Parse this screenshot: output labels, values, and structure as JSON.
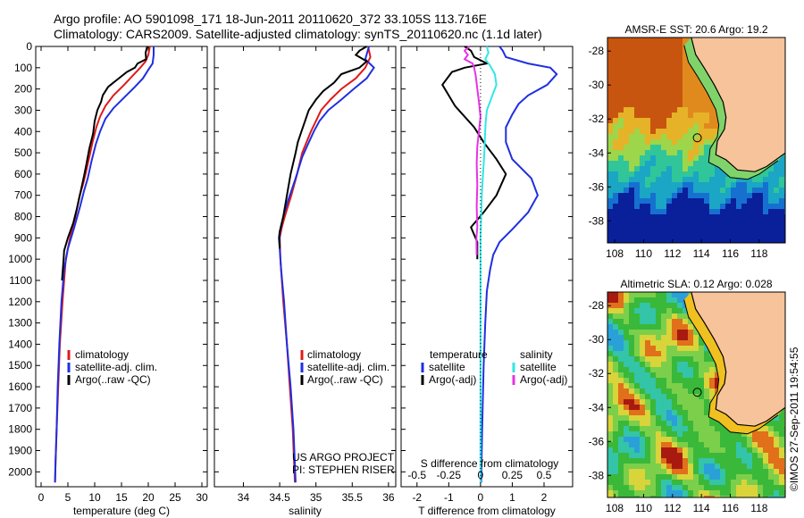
{
  "header": {
    "title_line1": "Argo profile: AO 5901098_171 18-Jun-2011 20110620_372 33.105S 113.716E",
    "title_line2": "Climatology: CARS2009. Satellite-adjusted climatology: synTS_20110620.nc (1.1d later)"
  },
  "credits": {
    "project": "US ARGO PROJECT",
    "pi": "PI: STEPHEN RISER",
    "stamp": "©IMOS 27-Sep-2011 19:54:55"
  },
  "colors": {
    "red": "#e01a1a",
    "blue": "#1f2fe0",
    "black": "#000000",
    "cyan": "#33e6e6",
    "magenta": "#e633e6"
  },
  "chart_data": [
    {
      "id": "temperature",
      "type": "line",
      "xlabel": "temperature (deg C)",
      "ylim": [
        0,
        2070
      ],
      "xlim": [
        -1,
        31
      ],
      "xticks": [
        0,
        5,
        10,
        15,
        20,
        25,
        30
      ],
      "yticks": [
        0,
        100,
        200,
        300,
        400,
        500,
        600,
        700,
        800,
        900,
        1000,
        1100,
        1200,
        1300,
        1400,
        1500,
        1600,
        1700,
        1800,
        1900,
        2000
      ],
      "legend": [
        "climatology",
        "satellite-adj. clim.",
        "Argo(..raw -QC)"
      ],
      "series": [
        {
          "name": "climatology",
          "color": "#e01a1a",
          "points": [
            [
              20.3,
              0
            ],
            [
              20,
              40
            ],
            [
              19.5,
              70
            ],
            [
              18.5,
              100
            ],
            [
              17,
              140
            ],
            [
              15.5,
              180
            ],
            [
              13.5,
              230
            ],
            [
              12,
              280
            ],
            [
              11,
              330
            ],
            [
              10.3,
              380
            ],
            [
              9.6,
              450
            ],
            [
              9,
              520
            ],
            [
              8.3,
              600
            ],
            [
              7.8,
              650
            ],
            [
              7.2,
              700
            ],
            [
              6.4,
              800
            ],
            [
              5.4,
              900
            ],
            [
              4.6,
              1000
            ],
            [
              4,
              1200
            ],
            [
              3.5,
              1400
            ],
            [
              3.2,
              1600
            ],
            [
              2.9,
              1800
            ],
            [
              2.7,
              1950
            ],
            [
              2.6,
              2050
            ]
          ]
        },
        {
          "name": "satellite-adj. clim.",
          "color": "#1f2fe0",
          "points": [
            [
              21,
              0
            ],
            [
              21,
              40
            ],
            [
              20.8,
              80
            ],
            [
              20,
              110
            ],
            [
              19,
              150
            ],
            [
              17.5,
              190
            ],
            [
              15.5,
              240
            ],
            [
              13.5,
              290
            ],
            [
              12,
              340
            ],
            [
              11,
              400
            ],
            [
              10.2,
              460
            ],
            [
              9.4,
              540
            ],
            [
              8.7,
              620
            ],
            [
              8,
              680
            ],
            [
              7.3,
              750
            ],
            [
              6.2,
              850
            ],
            [
              5,
              950
            ],
            [
              4.3,
              1050
            ],
            [
              3.8,
              1200
            ],
            [
              3.4,
              1400
            ],
            [
              3.1,
              1600
            ],
            [
              2.9,
              1800
            ],
            [
              2.7,
              1950
            ],
            [
              2.6,
              2050
            ]
          ]
        },
        {
          "name": "Argo(..raw -QC)",
          "color": "#000000",
          "points": [
            [
              19.8,
              0
            ],
            [
              19.5,
              30
            ],
            [
              19.6,
              60
            ],
            [
              18,
              80
            ],
            [
              17.5,
              100
            ],
            [
              16,
              120
            ],
            [
              14,
              160
            ],
            [
              12.5,
              190
            ],
            [
              11.5,
              230
            ],
            [
              11.2,
              260
            ],
            [
              10.5,
              300
            ],
            [
              10,
              350
            ],
            [
              9.7,
              410
            ],
            [
              9,
              480
            ],
            [
              8.4,
              560
            ],
            [
              8,
              610
            ],
            [
              7.4,
              680
            ],
            [
              6.7,
              760
            ],
            [
              6,
              830
            ],
            [
              5,
              900
            ],
            [
              4.3,
              960
            ],
            [
              4.2,
              1000
            ],
            [
              3.9,
              1100
            ]
          ]
        }
      ]
    },
    {
      "id": "salinity",
      "type": "line",
      "xlabel": "salinity",
      "ylim": [
        0,
        2070
      ],
      "xlim": [
        33.6,
        36.1
      ],
      "xticks": [
        34,
        34.5,
        35,
        35.5,
        36
      ],
      "xtick_labels": [
        "34",
        "34.5",
        "35",
        "35.5",
        "36"
      ],
      "legend": [
        "climatology",
        "satellite-adj. clim.",
        "Argo(..raw -QC)"
      ],
      "series": [
        {
          "name": "climatology",
          "color": "#e01a1a",
          "points": [
            [
              35.72,
              0
            ],
            [
              35.75,
              50
            ],
            [
              35.68,
              100
            ],
            [
              35.55,
              150
            ],
            [
              35.35,
              200
            ],
            [
              35.2,
              250
            ],
            [
              35.07,
              300
            ],
            [
              35,
              350
            ],
            [
              34.93,
              400
            ],
            [
              34.87,
              450
            ],
            [
              34.81,
              500
            ],
            [
              34.74,
              600
            ],
            [
              34.66,
              700
            ],
            [
              34.57,
              800
            ],
            [
              34.53,
              850
            ],
            [
              34.5,
              900
            ],
            [
              34.51,
              1000
            ],
            [
              34.55,
              1200
            ],
            [
              34.6,
              1400
            ],
            [
              34.64,
              1600
            ],
            [
              34.68,
              1800
            ],
            [
              34.71,
              2050
            ]
          ]
        },
        {
          "name": "satellite-adj. clim.",
          "color": "#1f2fe0",
          "points": [
            [
              35.73,
              0
            ],
            [
              35.68,
              60
            ],
            [
              35.8,
              100
            ],
            [
              35.7,
              150
            ],
            [
              35.52,
              200
            ],
            [
              35.35,
              250
            ],
            [
              35.17,
              300
            ],
            [
              35.05,
              350
            ],
            [
              34.97,
              400
            ],
            [
              34.89,
              460
            ],
            [
              34.81,
              520
            ],
            [
              34.72,
              620
            ],
            [
              34.62,
              720
            ],
            [
              34.55,
              800
            ],
            [
              34.5,
              880
            ],
            [
              34.5,
              950
            ],
            [
              34.52,
              1050
            ],
            [
              34.56,
              1200
            ],
            [
              34.6,
              1400
            ],
            [
              34.65,
              1600
            ],
            [
              34.69,
              1800
            ],
            [
              34.72,
              2050
            ]
          ]
        },
        {
          "name": "Argo(..raw -QC)",
          "color": "#000000",
          "points": [
            [
              35.7,
              0
            ],
            [
              35.6,
              20
            ],
            [
              35.55,
              40
            ],
            [
              35.7,
              70
            ],
            [
              35.6,
              100
            ],
            [
              35.35,
              130
            ],
            [
              35.25,
              170
            ],
            [
              35.1,
              210
            ],
            [
              35,
              250
            ],
            [
              34.9,
              300
            ],
            [
              34.85,
              350
            ],
            [
              34.8,
              400
            ],
            [
              34.75,
              450
            ],
            [
              34.72,
              500
            ],
            [
              34.65,
              600
            ],
            [
              34.6,
              700
            ],
            [
              34.55,
              800
            ],
            [
              34.5,
              870
            ],
            [
              34.49,
              900
            ],
            [
              34.5,
              950
            ]
          ]
        }
      ]
    },
    {
      "id": "differences",
      "type": "line",
      "xlabel": "T difference from climatology",
      "xlabel_top": "S difference from climatology",
      "ylim": [
        0,
        2070
      ],
      "xlim": [
        -2.5,
        2.9
      ],
      "xticks": [
        -2,
        -1,
        0,
        1,
        2
      ],
      "top_ticks": [
        -0.5,
        -0.25,
        0,
        0.25,
        0.5
      ],
      "top_tick_labels": [
        "-0.5",
        "-0.25",
        "0",
        "0.25",
        "0.5"
      ],
      "legend": {
        "temperature_heading": "temperature",
        "salinity_heading": "salinity",
        "temp_sat": "satellite",
        "temp_argo": "Argo(-adj)",
        "sal_sat": "satellite",
        "sal_argo": "Argo(-adj)"
      },
      "series": [
        {
          "name": "temperature satellite",
          "color": "#1f2fe0",
          "points": [
            [
              0.6,
              0
            ],
            [
              0.7,
              20
            ],
            [
              0.8,
              50
            ],
            [
              1.5,
              80
            ],
            [
              2.2,
              100
            ],
            [
              2.4,
              130
            ],
            [
              2.1,
              180
            ],
            [
              1.5,
              230
            ],
            [
              1.2,
              270
            ],
            [
              1,
              320
            ],
            [
              0.8,
              380
            ],
            [
              0.8,
              450
            ],
            [
              1,
              530
            ],
            [
              1.6,
              620
            ],
            [
              1.8,
              700
            ],
            [
              1.5,
              780
            ],
            [
              1,
              860
            ],
            [
              0.6,
              920
            ],
            [
              0.4,
              980
            ],
            [
              0.3,
              1050
            ],
            [
              0.2,
              1150
            ],
            [
              0.15,
              1300
            ],
            [
              0.1,
              1500
            ],
            [
              0.05,
              1800
            ],
            [
              0.02,
              2050
            ]
          ]
        },
        {
          "name": "temperature Argo(-adj)",
          "color": "#000000",
          "points": [
            [
              -0.5,
              0
            ],
            [
              -0.3,
              20
            ],
            [
              -0.2,
              50
            ],
            [
              0.2,
              80
            ],
            [
              -0.5,
              100
            ],
            [
              -0.9,
              120
            ],
            [
              -1.2,
              180
            ],
            [
              -1,
              230
            ],
            [
              -0.8,
              280
            ],
            [
              -0.5,
              330
            ],
            [
              -0.2,
              380
            ],
            [
              0.1,
              450
            ],
            [
              0.5,
              530
            ],
            [
              0.8,
              600
            ],
            [
              0.5,
              700
            ],
            [
              0.1,
              780
            ],
            [
              -0.3,
              850
            ],
            [
              -0.1,
              920
            ],
            [
              -0.1,
              1000
            ]
          ]
        },
        {
          "name": "salinity satellite",
          "color": "#33e6e6",
          "points": [
            [
              0.2,
              0
            ],
            [
              0.25,
              30
            ],
            [
              0.15,
              60
            ],
            [
              0.3,
              90
            ],
            [
              0.45,
              130
            ],
            [
              0.5,
              180
            ],
            [
              0.35,
              240
            ],
            [
              0.2,
              300
            ],
            [
              0.16,
              360
            ],
            [
              0.14,
              420
            ],
            [
              0.12,
              500
            ],
            [
              0.08,
              600
            ],
            [
              0.04,
              700
            ],
            [
              0.02,
              800
            ],
            [
              0,
              900
            ],
            [
              0,
              1100
            ],
            [
              0,
              1500
            ],
            [
              0,
              2050
            ]
          ]
        },
        {
          "name": "salinity Argo(-adj)",
          "color": "#e633e6",
          "points": [
            [
              -0.35,
              0
            ],
            [
              -0.5,
              20
            ],
            [
              -0.4,
              40
            ],
            [
              -0.5,
              60
            ],
            [
              -0.25,
              80
            ],
            [
              -0.2,
              100
            ],
            [
              -0.15,
              140
            ],
            [
              -0.1,
              200
            ],
            [
              -0.05,
              260
            ],
            [
              0,
              330
            ],
            [
              -0.05,
              400
            ],
            [
              -0.1,
              470
            ],
            [
              -0.12,
              550
            ],
            [
              -0.1,
              650
            ],
            [
              -0.12,
              750
            ],
            [
              -0.1,
              850
            ],
            [
              -0.13,
              900
            ],
            [
              -0.12,
              980
            ]
          ]
        }
      ]
    },
    {
      "id": "sst-map",
      "type": "heatmap",
      "title": "AMSR-E SST: 20.6 Argo: 19.2",
      "xlim": [
        107.5,
        119.8
      ],
      "ylim": [
        -39.3,
        -27.2
      ],
      "xticks": [
        108,
        110,
        112,
        114,
        116,
        118
      ],
      "yticks": [
        -28,
        -30,
        -32,
        -34,
        -36,
        -38
      ],
      "float_position": [
        113.716,
        -33.105
      ]
    },
    {
      "id": "sla-map",
      "type": "heatmap",
      "title": "Altimetric SLA: 0.12 Argo: 0.028",
      "xlim": [
        107.5,
        119.8
      ],
      "ylim": [
        -39.3,
        -27.2
      ],
      "xticks": [
        108,
        110,
        112,
        114,
        116,
        118
      ],
      "yticks": [
        -28,
        -30,
        -32,
        -34,
        -36,
        -38
      ],
      "float_position": [
        113.716,
        -33.105
      ]
    }
  ]
}
